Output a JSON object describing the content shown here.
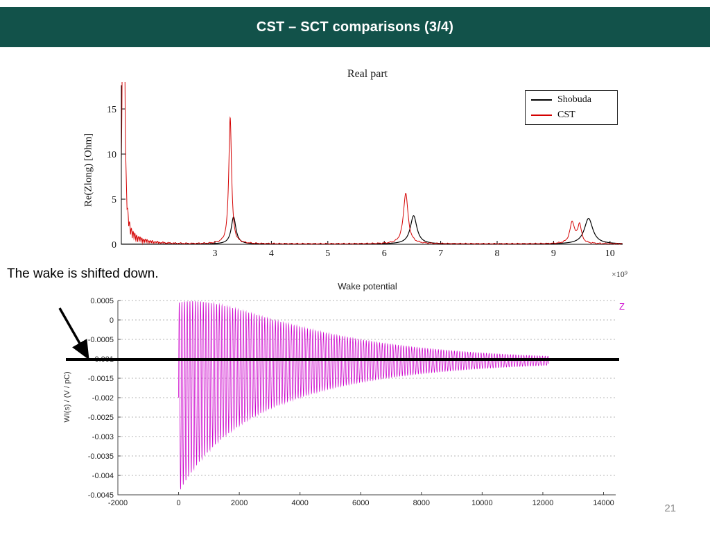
{
  "slide": {
    "title": "CST – SCT comparisons (3/4)",
    "annotation": "The wake is shifted down.",
    "page_number": "21",
    "header_color": "#12524a"
  },
  "chart_data": [
    {
      "id": "real-part",
      "type": "line",
      "title": "Real part",
      "ylabel": "Re(Zlong) [Ohm]",
      "xlim": [
        1.34,
        10.22
      ],
      "ylim": [
        0,
        17.6
      ],
      "x_ticks": [
        3,
        4,
        5,
        6,
        7,
        8,
        9,
        10
      ],
      "x_tick_labels": [
        "3",
        "4",
        "5",
        "6",
        "7",
        "8",
        "9",
        "10"
      ],
      "y_ticks": [
        0,
        5,
        10,
        15
      ],
      "y_tick_labels": [
        "0",
        "5",
        "10",
        "15"
      ],
      "x_exponent_label": "×10⁹",
      "legend_position": "top-right",
      "grid": "off",
      "series": [
        {
          "name": "Shobuda",
          "color": "#000000",
          "baseline": 0.02,
          "peaks": [
            {
              "center": 3.33,
              "height": 3.0,
              "width": 0.05
            },
            {
              "center": 6.52,
              "height": 3.15,
              "width": 0.07
            },
            {
              "center": 9.62,
              "height": 2.85,
              "width": 0.09
            }
          ]
        },
        {
          "name": "CST",
          "color": "#d40000",
          "baseline": 0.05,
          "peaks": [
            {
              "center": 1.38,
              "height": 70,
              "width": 0.015
            },
            {
              "center": 3.27,
              "height": 14.0,
              "width": 0.03
            },
            {
              "center": 6.38,
              "height": 5.6,
              "width": 0.05
            },
            {
              "center": 9.33,
              "height": 2.35,
              "width": 0.05
            },
            {
              "center": 9.46,
              "height": 2.05,
              "width": 0.04
            }
          ],
          "noise": {
            "from": 1.38,
            "to": 3.2,
            "amplitude": 1.55,
            "decay": 0.28,
            "period": 0.062,
            "base_ripple": 0.07
          }
        }
      ]
    },
    {
      "id": "wake-potential",
      "type": "line",
      "title": "Wake potential",
      "ylabel": "WI(s) / (V / pC)",
      "xlim": [
        -2000,
        14400
      ],
      "ylim": [
        -0.0045,
        0.0005
      ],
      "x_ticks": [
        -2000,
        0,
        2000,
        4000,
        6000,
        8000,
        10000,
        12000,
        14000
      ],
      "x_tick_labels": [
        "-2000",
        "0",
        "2000",
        "4000",
        "6000",
        "8000",
        "10000",
        "12000",
        "14000"
      ],
      "y_ticks": [
        0.0005,
        0,
        -0.0005,
        -0.001,
        -0.0015,
        -0.002,
        -0.0025,
        -0.003,
        -0.0035,
        -0.004,
        -0.0045
      ],
      "y_tick_labels": [
        "0.0005",
        "0",
        "-0.0005",
        "-0.001",
        "-0.0015",
        "-0.002",
        "-0.0025",
        "-0.003",
        "-0.0035",
        "-0.004",
        "-0.0045"
      ],
      "legend": [
        "Z"
      ],
      "series_color": "#cc00cc",
      "baseline_line_value": -0.00105,
      "grid": "horizontal-dashed",
      "signal_model": {
        "s_start": 0,
        "s_end": 12200,
        "center_start": -0.002,
        "center_end": -0.00105,
        "center_decay": 1200,
        "amp_start": 0.00245,
        "amp_decay": 4000,
        "period": 88
      }
    }
  ]
}
